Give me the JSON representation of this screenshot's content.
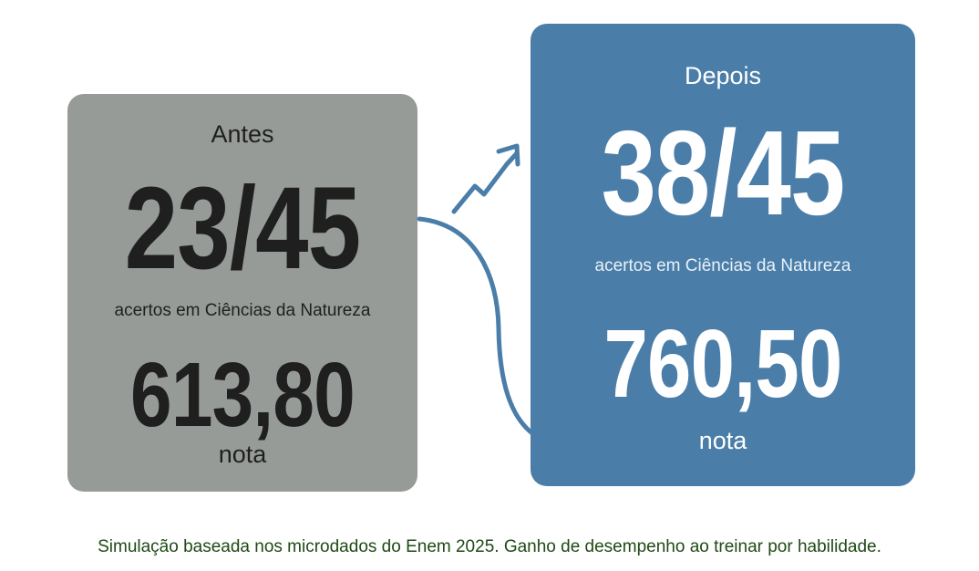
{
  "before": {
    "label": "Antes",
    "score": "23/45",
    "caption": "acertos em Ciências da Natureza",
    "grade": "613,80",
    "grade_unit": "nota"
  },
  "after": {
    "label": "Depois",
    "score": "38/45",
    "caption": "acertos em Ciências da Natureza",
    "grade": "760,50",
    "grade_unit": "nota"
  },
  "footnote": "Simulação baseada nos microdados do Enem 2025. Ganho de desempenho ao treinar por habilidade.",
  "colors": {
    "before_card": "#979b98",
    "after_card": "#4a7ea9",
    "arrow": "#4a7ea9",
    "footnote_text": "#1f4a14"
  },
  "icons": [
    "trend-up-arrow-icon",
    "curved-arrow-icon"
  ]
}
